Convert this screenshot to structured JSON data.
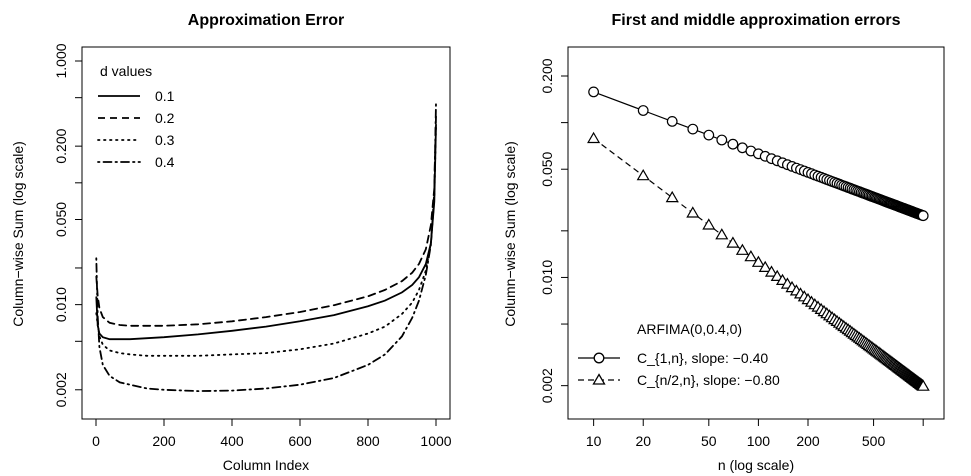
{
  "chart_data": [
    {
      "type": "line",
      "title": "Approximation Error",
      "xlabel": "Column Index",
      "ylabel": "Column−wise Sum (log scale)",
      "log_y": true,
      "xlim": [
        0,
        1000
      ],
      "ylim": [
        0.0015,
        1.0
      ],
      "x_ticks": [
        0,
        200,
        400,
        600,
        800,
        1000
      ],
      "x_tick_labels": [
        "0",
        "200",
        "400",
        "600",
        "800",
        "1000"
      ],
      "y_ticks": [
        0.002,
        0.01,
        0.05,
        0.2,
        1.0
      ],
      "y_tick_labels": [
        "0.002",
        "0.010",
        "0.050",
        "0.200",
        "1.000"
      ],
      "grid": false,
      "legend": {
        "title": "d values",
        "position": "top-left"
      },
      "series": [
        {
          "name": "0.1",
          "line": "solid",
          "x": [
            1,
            5,
            10,
            20,
            40,
            70,
            100,
            150,
            200,
            300,
            400,
            500,
            600,
            700,
            800,
            850,
            900,
            930,
            950,
            970,
            985,
            995,
            1000
          ],
          "y": [
            0.0115,
            0.0068,
            0.0058,
            0.0054,
            0.0052,
            0.0052,
            0.0052,
            0.0053,
            0.0054,
            0.0057,
            0.0061,
            0.0066,
            0.0073,
            0.0082,
            0.0097,
            0.0108,
            0.0126,
            0.0145,
            0.0168,
            0.0215,
            0.032,
            0.07,
            0.3
          ]
        },
        {
          "name": "0.2",
          "line": "dashed",
          "x": [
            1,
            5,
            10,
            20,
            40,
            70,
            100,
            150,
            200,
            300,
            400,
            500,
            600,
            700,
            800,
            850,
            900,
            930,
            950,
            970,
            985,
            995,
            1000
          ],
          "y": [
            0.017,
            0.0118,
            0.0094,
            0.0079,
            0.0071,
            0.0068,
            0.0067,
            0.0067,
            0.0067,
            0.0069,
            0.0073,
            0.0079,
            0.0087,
            0.0099,
            0.0117,
            0.0132,
            0.0156,
            0.0183,
            0.0216,
            0.0284,
            0.045,
            0.09,
            0.35
          ]
        },
        {
          "name": "0.3",
          "line": "dotted",
          "x": [
            1,
            5,
            10,
            20,
            40,
            70,
            100,
            150,
            200,
            300,
            400,
            500,
            600,
            700,
            800,
            850,
            900,
            930,
            950,
            970,
            985,
            995,
            1000
          ],
          "y": [
            0.0085,
            0.0068,
            0.0055,
            0.0047,
            0.0042,
            0.004,
            0.0039,
            0.0038,
            0.0038,
            0.0038,
            0.0039,
            0.004,
            0.0043,
            0.0048,
            0.0058,
            0.0066,
            0.0084,
            0.0104,
            0.0132,
            0.019,
            0.032,
            0.075,
            0.3
          ]
        },
        {
          "name": "0.4",
          "line": "dotdash",
          "x": [
            1,
            5,
            10,
            20,
            40,
            70,
            100,
            150,
            200,
            300,
            400,
            500,
            600,
            700,
            800,
            850,
            900,
            930,
            950,
            970,
            985,
            995,
            1000
          ],
          "y": [
            0.024,
            0.008,
            0.0045,
            0.0032,
            0.0026,
            0.0023,
            0.0022,
            0.00205,
            0.002,
            0.00195,
            0.00197,
            0.00205,
            0.0022,
            0.0025,
            0.0032,
            0.0039,
            0.0055,
            0.0078,
            0.0108,
            0.0175,
            0.031,
            0.085,
            0.45
          ]
        }
      ]
    },
    {
      "type": "line",
      "title": "First and middle approximation errors",
      "xlabel": "n (log scale)",
      "ylabel": "Column−wise Sum (log scale)",
      "log_x": true,
      "log_y": true,
      "xlim": [
        8.5,
        1100
      ],
      "ylim": [
        0.0015,
        0.25
      ],
      "x_ticks": [
        10,
        20,
        50,
        100,
        200,
        500
      ],
      "x_tick_labels": [
        "10",
        "20",
        "50",
        "100",
        "200",
        "500"
      ],
      "y_ticks": [
        0.002,
        0.01,
        0.05,
        0.2
      ],
      "y_tick_labels": [
        "0.002",
        "0.010",
        "0.050",
        "0.200"
      ],
      "grid": false,
      "legend": {
        "title": "ARFIMA(0,0.4,0)",
        "position": "bottom-left"
      },
      "series": [
        {
          "name": "C_{1,n}, slope: −0.40",
          "line": "solid",
          "marker": "circle",
          "x": [
            10,
            20,
            30,
            40,
            50,
            60,
            70,
            80,
            90,
            100,
            110,
            120,
            130,
            140,
            150,
            160,
            170,
            180,
            190,
            200,
            210,
            220,
            230,
            240,
            250,
            260,
            270,
            280,
            290,
            300,
            310,
            320,
            330,
            340,
            350,
            360,
            370,
            380,
            390,
            400,
            410,
            420,
            430,
            440,
            450,
            460,
            470,
            480,
            490,
            500,
            510,
            520,
            530,
            540,
            550,
            560,
            570,
            580,
            590,
            600,
            610,
            620,
            630,
            640,
            650,
            660,
            670,
            680,
            690,
            700,
            710,
            720,
            730,
            740,
            750,
            760,
            770,
            780,
            790,
            800,
            810,
            820,
            830,
            840,
            850,
            860,
            870,
            880,
            890,
            900,
            910,
            920,
            930,
            940,
            950,
            960,
            970,
            980,
            990,
            1000
          ],
          "slope": -0.4,
          "y_at_10": 0.158
        },
        {
          "name": "C_{n/2,n}, slope: −0.80",
          "line": "dashed",
          "marker": "triangle",
          "x": [
            10,
            20,
            30,
            40,
            50,
            60,
            70,
            80,
            90,
            100,
            110,
            120,
            130,
            140,
            150,
            160,
            170,
            180,
            190,
            200,
            210,
            220,
            230,
            240,
            250,
            260,
            270,
            280,
            290,
            300,
            310,
            320,
            330,
            340,
            350,
            360,
            370,
            380,
            390,
            400,
            410,
            420,
            430,
            440,
            450,
            460,
            470,
            480,
            490,
            500,
            510,
            520,
            530,
            540,
            550,
            560,
            570,
            580,
            590,
            600,
            610,
            620,
            630,
            640,
            650,
            660,
            670,
            680,
            690,
            700,
            710,
            720,
            730,
            740,
            750,
            760,
            770,
            780,
            790,
            800,
            810,
            820,
            830,
            840,
            850,
            860,
            870,
            880,
            890,
            900,
            910,
            920,
            930,
            940,
            950,
            960,
            970,
            980,
            990,
            1000
          ],
          "slope": -0.8,
          "y_at_10": 0.079
        }
      ]
    }
  ]
}
